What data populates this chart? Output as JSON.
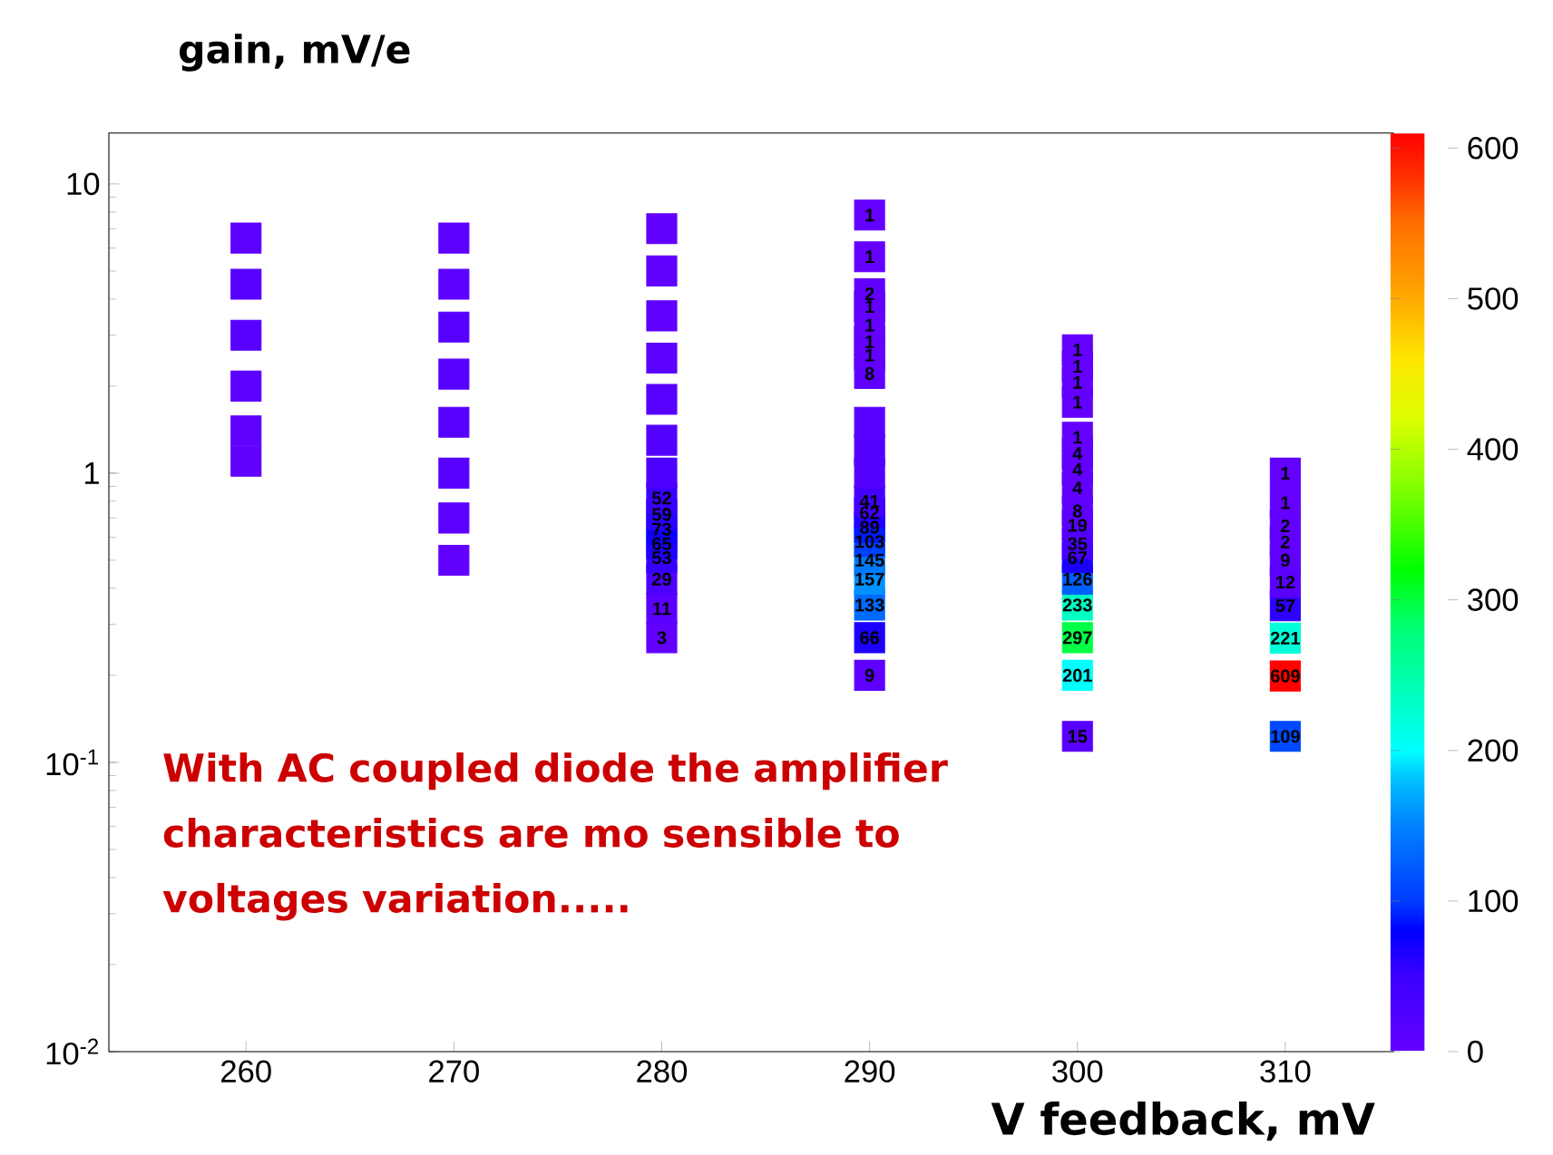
{
  "chart_data": {
    "type": "scatter",
    "marker": "square",
    "log": "y",
    "ylabel": "gain, mV/e",
    "xlabel": "V feedback, mV",
    "annotations": [
      "With AC coupled diode the amplifier characteristics are mo sensible to voltages variation.....",
      {
        "text": "109",
        "x": 310,
        "y": 0.123
      },
      {
        "text": "609",
        "x": 310,
        "y": 0.199
      },
      {
        "text": "221",
        "x": 310,
        "y": 0.269
      },
      {
        "text": "57",
        "x": 310,
        "y": 0.348
      },
      {
        "text": "12",
        "x": 310,
        "y": 0.42
      },
      {
        "text": "9",
        "x": 310,
        "y": 0.5
      },
      {
        "text": "2",
        "x": 310,
        "y": 0.578
      },
      {
        "text": "2",
        "x": 310,
        "y": 0.658
      },
      {
        "text": "1",
        "x": 310,
        "y": 0.79
      },
      {
        "text": "1",
        "x": 310,
        "y": 1.0
      },
      {
        "text": "15",
        "x": 300,
        "y": 0.123
      },
      {
        "text": "201",
        "x": 300,
        "y": 0.2
      },
      {
        "text": "297",
        "x": 300,
        "y": 0.27
      },
      {
        "text": "233",
        "x": 300,
        "y": 0.35
      },
      {
        "text": "126",
        "x": 300,
        "y": 0.43
      },
      {
        "text": "67",
        "x": 300,
        "y": 0.51
      },
      {
        "text": "35",
        "x": 300,
        "y": 0.57
      },
      {
        "text": "19",
        "x": 300,
        "y": 0.66
      },
      {
        "text": "8",
        "x": 300,
        "y": 0.74
      },
      {
        "text": "4",
        "x": 300,
        "y": 0.89
      },
      {
        "text": "4",
        "x": 300,
        "y": 1.03
      },
      {
        "text": "4",
        "x": 300,
        "y": 1.17
      },
      {
        "text": "1",
        "x": 300,
        "y": 1.33
      },
      {
        "text": "1",
        "x": 300,
        "y": 1.76
      },
      {
        "text": "1",
        "x": 300,
        "y": 2.06
      },
      {
        "text": "1",
        "x": 300,
        "y": 2.34
      },
      {
        "text": "1",
        "x": 300,
        "y": 2.67
      },
      {
        "text": "9",
        "x": 290,
        "y": 0.2
      },
      {
        "text": "66",
        "x": 290,
        "y": 0.27
      },
      {
        "text": "133",
        "x": 290,
        "y": 0.35
      },
      {
        "text": "157",
        "x": 290,
        "y": 0.43
      },
      {
        "text": "145",
        "x": 290,
        "y": 0.5
      },
      {
        "text": "103",
        "x": 290,
        "y": 0.58
      },
      {
        "text": "89",
        "x": 290,
        "y": 0.65
      },
      {
        "text": "62",
        "x": 290,
        "y": 0.73
      },
      {
        "text": "41",
        "x": 290,
        "y": 0.8
      },
      {
        "text": "8",
        "x": 290,
        "y": 2.21
      },
      {
        "text": "1",
        "x": 290,
        "y": 2.56
      },
      {
        "text": "1",
        "x": 290,
        "y": 2.85
      },
      {
        "text": "1",
        "x": 290,
        "y": 3.25
      },
      {
        "text": "1",
        "x": 290,
        "y": 3.77
      },
      {
        "text": "2",
        "x": 290,
        "y": 4.17
      },
      {
        "text": "1",
        "x": 290,
        "y": 5.6
      },
      {
        "text": "1",
        "x": 290,
        "y": 7.8
      },
      {
        "text": "3",
        "x": 280,
        "y": 0.27
      },
      {
        "text": "11",
        "x": 280,
        "y": 0.34
      },
      {
        "text": "29",
        "x": 280,
        "y": 0.43
      },
      {
        "text": "53",
        "x": 280,
        "y": 0.51
      },
      {
        "text": "65",
        "x": 280,
        "y": 0.57
      },
      {
        "text": "73",
        "x": 280,
        "y": 0.64
      },
      {
        "text": "59",
        "x": 280,
        "y": 0.72
      },
      {
        "text": "52",
        "x": 280,
        "y": 0.82
      }
    ],
    "xlim": [
      253.4,
      315.2
    ],
    "xticks": [
      260,
      270,
      280,
      290,
      300,
      310
    ],
    "ylim": [
      0.01,
      15
    ],
    "yticks": [
      {
        "value": 0.01,
        "label": "10$^{-2}$"
      },
      {
        "value": 0.1,
        "label": "10$^{-1}$"
      },
      1,
      10
    ],
    "clim": [
      0,
      610
    ],
    "cticks": [
      0,
      100,
      200,
      300,
      400,
      500,
      600
    ],
    "x": [
      310,
      310,
      310,
      310,
      310,
      310,
      310,
      310,
      310,
      310,
      300,
      300,
      300,
      300,
      300,
      300,
      300,
      300,
      300,
      300,
      300,
      300,
      300,
      300,
      300,
      300,
      300,
      290,
      290,
      290,
      290,
      290,
      290,
      290,
      290,
      290,
      290,
      290,
      290,
      290,
      290,
      290,
      290,
      290,
      290,
      290,
      290,
      280,
      280,
      280,
      280,
      280,
      280,
      280,
      280,
      280,
      280,
      280,
      280,
      280,
      280,
      280,
      270,
      270,
      270,
      270,
      270,
      270,
      270,
      270,
      260,
      260,
      260,
      260,
      260,
      260
    ],
    "values": [
      0.123,
      0.199,
      0.269,
      0.348,
      0.42,
      0.5,
      0.578,
      0.658,
      0.79,
      1.0,
      0.123,
      0.2,
      0.27,
      0.35,
      0.43,
      0.51,
      0.57,
      0.66,
      0.74,
      0.89,
      1.03,
      1.17,
      1.33,
      1.76,
      2.06,
      2.34,
      2.67,
      0.2,
      0.27,
      0.35,
      0.43,
      0.5,
      0.58,
      0.65,
      0.73,
      0.8,
      1.0,
      1.2,
      1.5,
      2.21,
      2.56,
      2.85,
      3.25,
      3.77,
      4.17,
      5.6,
      7.8,
      0.27,
      0.34,
      0.43,
      0.51,
      0.57,
      0.64,
      0.72,
      0.82,
      1.0,
      1.3,
      1.8,
      2.5,
      3.5,
      5,
      7,
      0.5,
      0.7,
      1.0,
      1.5,
      2.2,
      3.2,
      4.5,
      6.5,
      1.1,
      1.4,
      2,
      3,
      4.5,
      6.5
    ],
    "cvalues": [
      109,
      609,
      221,
      57,
      12,
      9,
      2,
      2,
      1,
      1,
      15,
      201,
      297,
      233,
      126,
      67,
      35,
      19,
      8,
      4,
      4,
      4,
      1,
      1,
      1,
      1,
      1,
      9,
      66,
      133,
      157,
      145,
      103,
      89,
      62,
      41,
      20,
      20,
      15,
      8,
      1,
      1,
      1,
      1,
      2,
      1,
      1,
      3,
      11,
      29,
      53,
      65,
      73,
      59,
      52,
      30,
      20,
      15,
      10,
      8,
      5,
      3,
      3,
      10,
      15,
      15,
      15,
      15,
      10,
      10,
      3,
      5,
      10,
      15,
      15,
      10
    ]
  }
}
